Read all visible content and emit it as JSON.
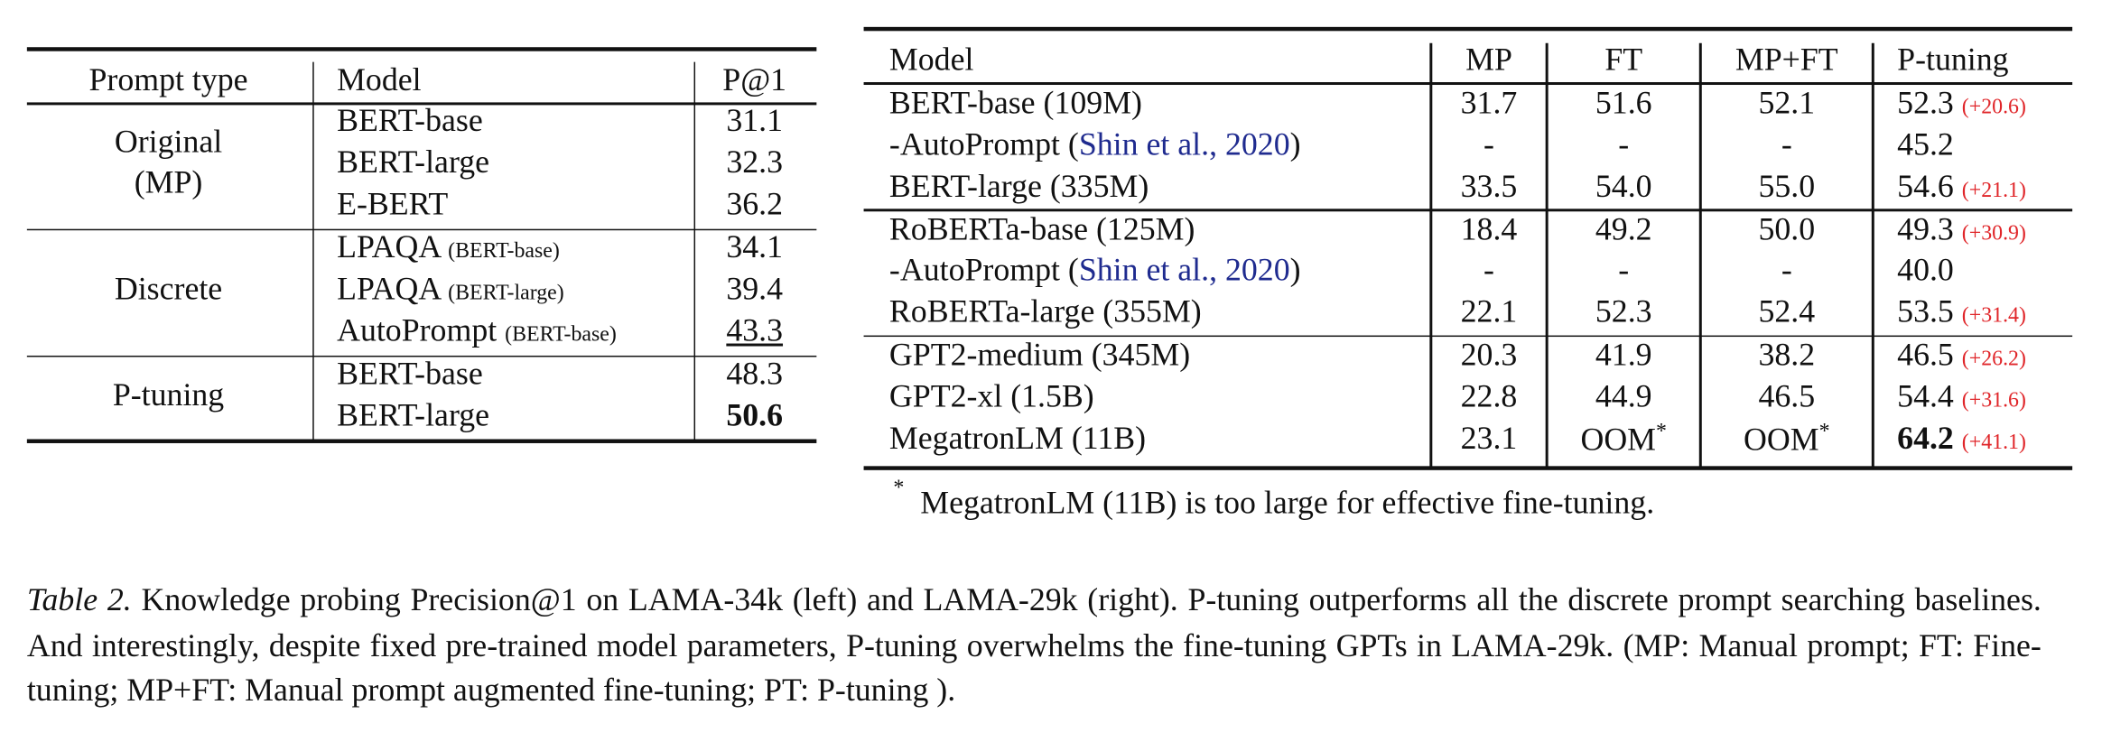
{
  "left_table": {
    "headers": [
      "Prompt type",
      "Model",
      "P@1"
    ],
    "groups": [
      {
        "type_lines": [
          "Original",
          "(MP)"
        ],
        "rows": [
          {
            "model": "BERT-base",
            "value": "31.1"
          },
          {
            "model": "BERT-large",
            "value": "32.3"
          },
          {
            "model": "E-BERT",
            "value": "36.2"
          }
        ]
      },
      {
        "type_lines": [
          "Discrete"
        ],
        "rows": [
          {
            "model": "LPAQA",
            "note": "(BERT-base)",
            "value": "34.1"
          },
          {
            "model": "LPAQA",
            "note": "(BERT-large)",
            "value": "39.4"
          },
          {
            "model": "AutoPrompt",
            "note": "(BERT-base)",
            "value": "43.3",
            "underline": true
          }
        ]
      },
      {
        "type_lines": [
          "P-tuning"
        ],
        "rows": [
          {
            "model": "BERT-base",
            "value": "48.3"
          },
          {
            "model": "BERT-large",
            "value": "50.6",
            "bold": true
          }
        ]
      }
    ]
  },
  "right_table": {
    "headers": [
      "Model",
      "MP",
      "FT",
      "MP+FT",
      "P-tuning"
    ],
    "groups": [
      [
        {
          "model": "BERT-base (109M)",
          "mp": "31.7",
          "ft": "51.6",
          "mpft": "52.1",
          "ptuning": "52.3",
          "gain": "(+20.6)"
        },
        {
          "model_prefix": "-AutoPrompt (",
          "citation": "Shin et al., 2020",
          "model_suffix": ")",
          "mp": "-",
          "ft": "-",
          "mpft": "-",
          "ptuning": "45.2"
        },
        {
          "model": "BERT-large (335M)",
          "mp": "33.5",
          "ft": "54.0",
          "mpft": "55.0",
          "ptuning": "54.6",
          "gain": "(+21.1)"
        }
      ],
      [
        {
          "model": "RoBERTa-base (125M)",
          "mp": "18.4",
          "ft": "49.2",
          "mpft": "50.0",
          "ptuning": "49.3",
          "gain": "(+30.9)"
        },
        {
          "model_prefix": "-AutoPrompt (",
          "citation": "Shin et al., 2020",
          "model_suffix": ")",
          "mp": "-",
          "ft": "-",
          "mpft": "-",
          "ptuning": "40.0"
        },
        {
          "model": "RoBERTa-large (355M)",
          "mp": "22.1",
          "ft": "52.3",
          "mpft": "52.4",
          "ptuning": "53.5",
          "gain": "(+31.4)"
        }
      ],
      [
        {
          "model": "GPT2-medium (345M)",
          "mp": "20.3",
          "ft": "41.9",
          "mpft": "38.2",
          "ptuning": "46.5",
          "gain": "(+26.2)"
        },
        {
          "model": "GPT2-xl (1.5B)",
          "mp": "22.8",
          "ft": "44.9",
          "mpft": "46.5",
          "ptuning": "54.4",
          "gain": "(+31.6)"
        },
        {
          "model": "MegatronLM (11B)",
          "mp": "23.1",
          "ft": "OOM",
          "ft_mark": "*",
          "mpft": "OOM",
          "mpft_mark": "*",
          "ptuning": "64.2",
          "ptuning_bold": true,
          "gain": "(+41.1)"
        }
      ]
    ],
    "footnote_mark": "*",
    "footnote": "MegatronLM (11B) is too large for effective fine-tuning."
  },
  "caption": {
    "label": "Table 2.",
    "text": "Knowledge probing Precision@1 on LAMA-34k (left) and LAMA-29k (right). P-tuning outperforms all the discrete prompt searching baselines. And interestingly, despite fixed pre-trained model parameters, P-tuning overwhelms the fine-tuning GPTs in LAMA-29k. (MP: Manual prompt; FT: Fine-tuning; MP+FT: Manual prompt augmented fine-tuning; PT: P-tuning )."
  }
}
